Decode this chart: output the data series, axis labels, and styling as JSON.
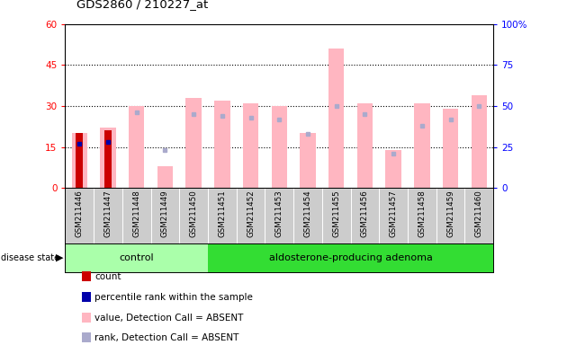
{
  "title": "GDS2860 / 210227_at",
  "samples": [
    "GSM211446",
    "GSM211447",
    "GSM211448",
    "GSM211449",
    "GSM211450",
    "GSM211451",
    "GSM211452",
    "GSM211453",
    "GSM211454",
    "GSM211455",
    "GSM211456",
    "GSM211457",
    "GSM211458",
    "GSM211459",
    "GSM211460"
  ],
  "pink_bar_values": [
    20,
    22,
    30,
    8,
    33,
    32,
    31,
    30,
    20,
    51,
    31,
    14,
    31,
    29,
    34
  ],
  "blue_marker_values": [
    27,
    28,
    46,
    23,
    45,
    44,
    43,
    42,
    33,
    50,
    45,
    21,
    38,
    42,
    50
  ],
  "red_bar_values": [
    20,
    21,
    0,
    0,
    0,
    0,
    0,
    0,
    0,
    0,
    0,
    0,
    0,
    0,
    0
  ],
  "dark_blue_marker_values": [
    27,
    28,
    0,
    0,
    0,
    0,
    0,
    0,
    0,
    0,
    0,
    0,
    0,
    0,
    0
  ],
  "ylim_left": [
    0,
    60
  ],
  "ylim_right": [
    0,
    100
  ],
  "yticks_left": [
    0,
    15,
    30,
    45,
    60
  ],
  "yticks_right": [
    0,
    25,
    50,
    75,
    100
  ],
  "ytick_labels_left": [
    "0",
    "15",
    "30",
    "45",
    "60"
  ],
  "ytick_labels_right": [
    "0",
    "25",
    "50",
    "75",
    "100%"
  ],
  "grid_values": [
    15,
    30,
    45
  ],
  "control_light": "#AAFFAA",
  "control_dark": "#55DD55",
  "adenoma_color": "#33DD33",
  "pink_color": "#FFB6C1",
  "blue_marker_color": "#AAAACC",
  "red_color": "#CC0000",
  "dark_blue_color": "#0000AA",
  "tick_label_area_color": "#CCCCCC",
  "bg_color": "#FFFFFF",
  "legend_items": [
    {
      "color": "#CC0000",
      "label": "count"
    },
    {
      "color": "#0000AA",
      "label": "percentile rank within the sample"
    },
    {
      "color": "#FFB6C1",
      "label": "value, Detection Call = ABSENT"
    },
    {
      "color": "#AAAACC",
      "label": "rank, Detection Call = ABSENT"
    }
  ]
}
